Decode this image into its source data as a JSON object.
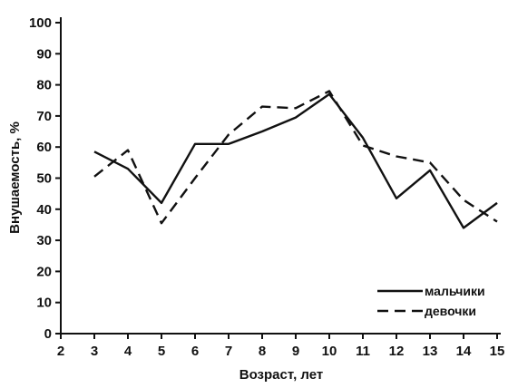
{
  "chart_data": {
    "type": "line",
    "xlabel": "Возраст, лет",
    "ylabel": "Внушаемость, %",
    "xlim": [
      2,
      15
    ],
    "ylim": [
      0,
      100
    ],
    "x_ticks": [
      2,
      3,
      4,
      5,
      6,
      7,
      8,
      9,
      10,
      11,
      12,
      13,
      14,
      15
    ],
    "y_ticks": [
      0,
      10,
      20,
      30,
      40,
      50,
      60,
      70,
      80,
      90,
      100
    ],
    "x": [
      3,
      4,
      5,
      6,
      7,
      8,
      9,
      10,
      11,
      12,
      13,
      14,
      15
    ],
    "series": [
      {
        "name": "мальчики",
        "style": "solid",
        "values": [
          58.5,
          53,
          42,
          61,
          61,
          65,
          69.5,
          77,
          63,
          43.5,
          52.5,
          34,
          42
        ]
      },
      {
        "name": "девочки",
        "style": "dashed",
        "values": [
          50.5,
          59,
          35.5,
          50,
          64,
          73,
          72.5,
          78,
          60.5,
          57,
          55,
          43,
          36
        ]
      }
    ],
    "legend_position": "bottom-right",
    "grid": false
  }
}
